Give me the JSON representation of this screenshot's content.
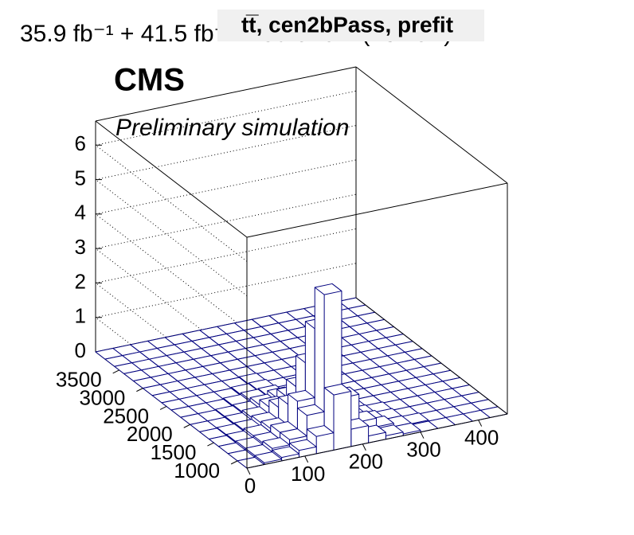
{
  "chart_data": {
    "type": "lego",
    "title": "tt̅, cen2bPass, prefit",
    "lumi": "35.9 fb⁻¹ + 41.5 fb⁻¹ + 59.8 fb⁻¹ (13 TeV)",
    "experiment": "CMS",
    "subtitle": "Preliminary simulation",
    "color": "#00007f",
    "xbins": [
      0,
      30,
      60,
      90,
      120,
      150,
      180,
      210,
      240,
      270,
      300,
      330,
      360,
      390,
      420,
      450
    ],
    "ybins": [
      800,
      1000,
      1200,
      1400,
      1600,
      1800,
      2000,
      2200,
      2400,
      2600,
      2800,
      3000,
      3200,
      3400,
      3600,
      3800,
      4000
    ],
    "z": [
      [
        0,
        0.05,
        0.1,
        0.2,
        0.5,
        1.6,
        0.5,
        0.2,
        0.1,
        0.05,
        0,
        0,
        0,
        0,
        0
      ],
      [
        0,
        0.05,
        0.15,
        0.3,
        0.9,
        4.3,
        1.2,
        0.4,
        0.15,
        0.05,
        0.03,
        0,
        0,
        0,
        0
      ],
      [
        0,
        0.05,
        0.1,
        0.3,
        1.1,
        3.1,
        0.9,
        0.3,
        0.1,
        0.05,
        0,
        0,
        0,
        0,
        0
      ],
      [
        0,
        0.03,
        0.1,
        0.2,
        0.8,
        1.9,
        0.6,
        0.2,
        0.05,
        0.03,
        0,
        0,
        0,
        0,
        0
      ],
      [
        0,
        0.02,
        0.05,
        0.15,
        0.5,
        1.0,
        0.3,
        0.1,
        0.03,
        0,
        0,
        0,
        0,
        0,
        0
      ],
      [
        0,
        0,
        0.03,
        0.1,
        0.3,
        0.5,
        0.15,
        0.05,
        0,
        0,
        0,
        0,
        0,
        0,
        0
      ],
      [
        0,
        0,
        0.02,
        0.05,
        0.15,
        0.25,
        0.08,
        0.02,
        0,
        0,
        0,
        0,
        0,
        0,
        0
      ],
      [
        0,
        0,
        0,
        0.03,
        0.08,
        0.1,
        0.03,
        0,
        0,
        0,
        0,
        0,
        0,
        0,
        0
      ],
      [
        0,
        0,
        0,
        0,
        0.03,
        0.05,
        0,
        0,
        0,
        0,
        0,
        0,
        0,
        0,
        0
      ],
      [
        0,
        0,
        0,
        0,
        0,
        0.02,
        0,
        0,
        0,
        0,
        0,
        0,
        0,
        0,
        0
      ],
      [
        0,
        0,
        0,
        0,
        0,
        0,
        0,
        0,
        0,
        0,
        0,
        0,
        0,
        0,
        0
      ],
      [
        0,
        0,
        0,
        0,
        0,
        0,
        0,
        0,
        0,
        0,
        0,
        0,
        0,
        0,
        0
      ],
      [
        0,
        0,
        0,
        0,
        0,
        0,
        0,
        0,
        0,
        0,
        0,
        0,
        0,
        0,
        0
      ],
      [
        0,
        0,
        0,
        0,
        0,
        0,
        0,
        0,
        0,
        0,
        0,
        0,
        0,
        0,
        0
      ],
      [
        0,
        0,
        0,
        0,
        0,
        0,
        0,
        0,
        0,
        0,
        0,
        0,
        0,
        0,
        0
      ],
      [
        0,
        0,
        0,
        0,
        0,
        0,
        0,
        0,
        0,
        0,
        0,
        0,
        0,
        0,
        0
      ]
    ],
    "xlim": [
      0,
      450
    ],
    "ylim": [
      800,
      4000
    ],
    "zlim": [
      0,
      6.7
    ],
    "xticks": [
      0,
      100,
      200,
      300,
      400
    ],
    "yticks": [
      1000,
      1500,
      2000,
      2500,
      3000,
      3500
    ],
    "zticks": [
      0,
      1,
      2,
      3,
      4,
      5,
      6
    ],
    "grid": true
  }
}
